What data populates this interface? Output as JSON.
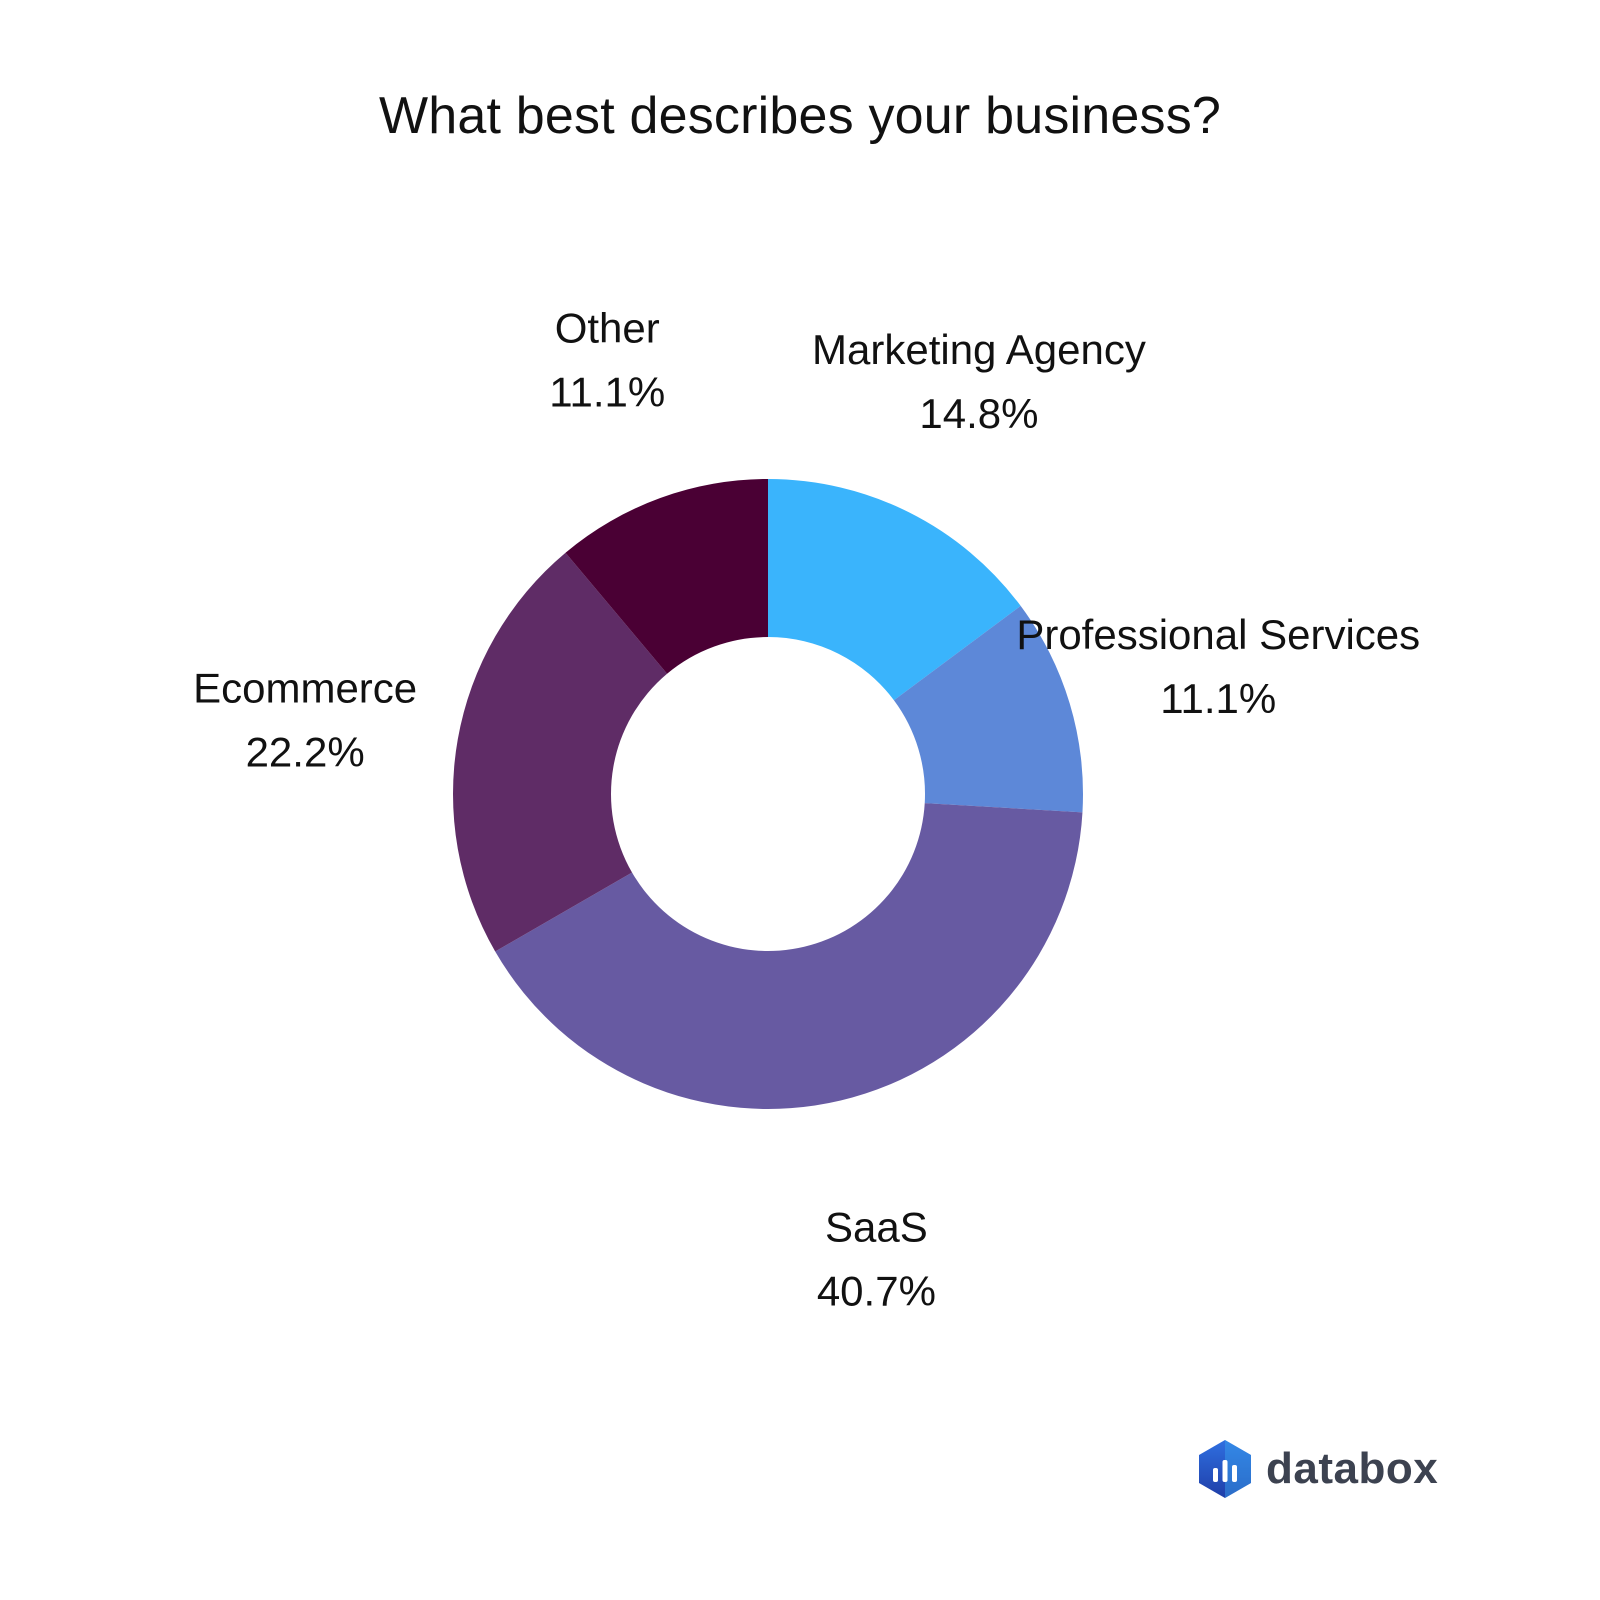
{
  "chart_data": {
    "type": "pie",
    "title": "What best describes your business?",
    "donut": true,
    "unit": "%",
    "slices": [
      {
        "label": "Marketing Agency",
        "value": 14.8,
        "display": "14.8%",
        "color": "#3ab4fc"
      },
      {
        "label": "Professional Services",
        "value": 11.1,
        "display": "11.1%",
        "color": "#5d88d8"
      },
      {
        "label": "SaaS",
        "value": 40.7,
        "display": "40.7%",
        "color": "#675aa2"
      },
      {
        "label": "Ecommerce",
        "value": 22.2,
        "display": "22.2%",
        "color": "#5f2c66"
      },
      {
        "label": "Other",
        "value": 11.1,
        "display": "11.1%",
        "color": "#4a0034"
      }
    ]
  },
  "brand": {
    "name": "databox",
    "logo_icon": "databox-hexagon-bars-icon",
    "logo_color": "#2a58c8"
  }
}
